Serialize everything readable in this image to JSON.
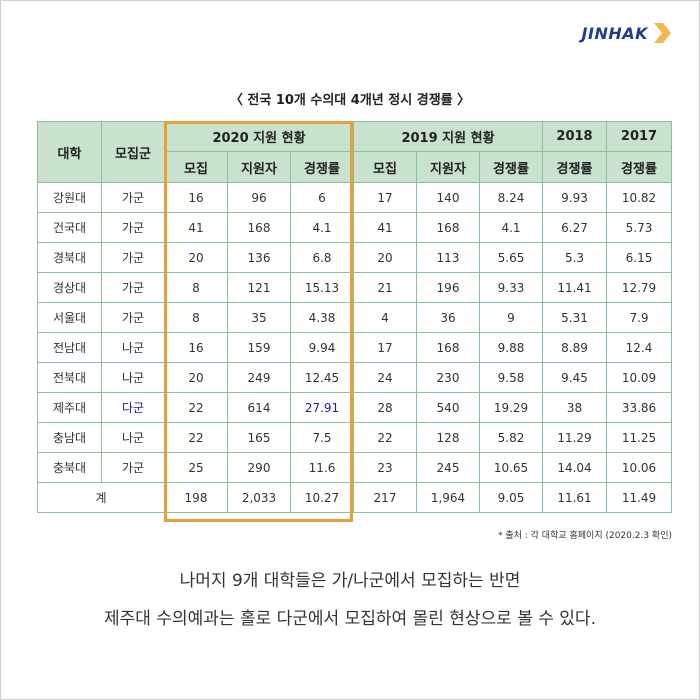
{
  "brand": {
    "name": "JINHAK",
    "accent": "#f2b84b",
    "text_color": "#1f3f8a"
  },
  "title": "〈 전국 10개 수의대 4개년 정시 경쟁률 〉",
  "header": {
    "university": "대학",
    "group": "모집군",
    "y2020": "2020 지원 현황",
    "y2019": "2019 지원 현황",
    "y2018": "2018",
    "y2017": "2017",
    "sub": {
      "recruit_2020": "모집",
      "applicants_2020": "지원자",
      "rate_2020": "경쟁률",
      "recruit_2019": "모집",
      "applicants_2019": "지원자",
      "rate_2019": "경쟁률",
      "rate_2018": "경쟁률",
      "rate_2017": "경쟁률"
    }
  },
  "rows": [
    {
      "name": "강원대",
      "group": "가군",
      "r20": "16",
      "a20": "96",
      "c20": "6",
      "r19": "17",
      "a19": "140",
      "c19": "8.24",
      "c18": "9.93",
      "c17": "10.82"
    },
    {
      "name": "건국대",
      "group": "가군",
      "r20": "41",
      "a20": "168",
      "c20": "4.1",
      "r19": "41",
      "a19": "168",
      "c19": "4.1",
      "c18": "6.27",
      "c17": "5.73"
    },
    {
      "name": "경북대",
      "group": "가군",
      "r20": "20",
      "a20": "136",
      "c20": "6.8",
      "r19": "20",
      "a19": "113",
      "c19": "5.65",
      "c18": "5.3",
      "c17": "6.15"
    },
    {
      "name": "경상대",
      "group": "가군",
      "r20": "8",
      "a20": "121",
      "c20": "15.13",
      "r19": "21",
      "a19": "196",
      "c19": "9.33",
      "c18": "11.41",
      "c17": "12.79"
    },
    {
      "name": "서울대",
      "group": "가군",
      "r20": "8",
      "a20": "35",
      "c20": "4.38",
      "r19": "4",
      "a19": "36",
      "c19": "9",
      "c18": "5.31",
      "c17": "7.9"
    },
    {
      "name": "전남대",
      "group": "나군",
      "r20": "16",
      "a20": "159",
      "c20": "9.94",
      "r19": "17",
      "a19": "168",
      "c19": "9.88",
      "c18": "8.89",
      "c17": "12.4"
    },
    {
      "name": "전북대",
      "group": "나군",
      "r20": "20",
      "a20": "249",
      "c20": "12.45",
      "r19": "24",
      "a19": "230",
      "c19": "9.58",
      "c18": "9.45",
      "c17": "10.09"
    },
    {
      "name": "제주대",
      "group": "다군",
      "r20": "22",
      "a20": "614",
      "c20": "27.91",
      "r19": "28",
      "a19": "540",
      "c19": "19.29",
      "c18": "38",
      "c17": "33.86"
    },
    {
      "name": "충남대",
      "group": "나군",
      "r20": "22",
      "a20": "165",
      "c20": "7.5",
      "r19": "22",
      "a19": "128",
      "c19": "5.82",
      "c18": "11.29",
      "c17": "11.25"
    },
    {
      "name": "충북대",
      "group": "가군",
      "r20": "25",
      "a20": "290",
      "c20": "11.6",
      "r19": "23",
      "a19": "245",
      "c19": "10.65",
      "c18": "14.04",
      "c17": "10.06"
    }
  ],
  "total": {
    "label": "계",
    "r20": "198",
    "a20": "2,033",
    "c20": "10.27",
    "r19": "217",
    "a19": "1,964",
    "c19": "9.05",
    "c18": "11.61",
    "c17": "11.49"
  },
  "highlight_color": "#e8a13a",
  "emphasis_color": "#1a1ab8",
  "source": "* 출처 : 각 대학교 홈페이지 (2020.2.3 확인)",
  "caption": {
    "line1": "나머지 9개 대학들은 가/나군에서 모집하는 반면",
    "line2": "제주대 수의예과는 홀로 다군에서 모집하여 몰린 현상으로 볼 수 있다."
  }
}
